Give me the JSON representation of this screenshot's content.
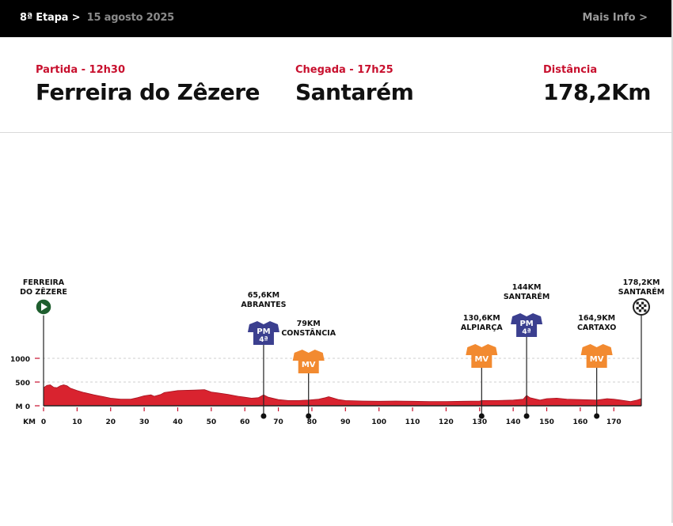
{
  "header": {
    "stage": "8ª Etapa",
    "separator": ">",
    "date": "15 agosto 2025",
    "more_info": "Mais Info >"
  },
  "stage_info": {
    "start_label": "Partida - 12h30",
    "start_city": "Ferreira do Zêzere",
    "finish_label": "Chegada - 17h25",
    "finish_city": "Santarém",
    "distance_label": "Distância",
    "distance_value": "178,2Km"
  },
  "colors": {
    "accent": "#c8102e",
    "profile_fill": "#d9232f",
    "pm_jersey": "#3b3f8f",
    "mv_jersey": "#f28a30"
  },
  "chart_data": {
    "type": "area",
    "x_axis_label": "KM",
    "y_axis_label": "M",
    "xlim": [
      0,
      178.2
    ],
    "ylim": [
      0,
      1000
    ],
    "x_ticks": [
      "0",
      "10",
      "20",
      "30",
      "40",
      "50",
      "60",
      "70",
      "80",
      "90",
      "100",
      "110",
      "120",
      "130",
      "140",
      "150",
      "160",
      "170"
    ],
    "x_tick_values": [
      0,
      10,
      20,
      30,
      40,
      50,
      60,
      70,
      80,
      90,
      100,
      110,
      120,
      130,
      140,
      150,
      160,
      170
    ],
    "y_ticks": [
      {
        "value": 0,
        "label": "M 0"
      },
      {
        "value": 500,
        "label": "500"
      },
      {
        "value": 1000,
        "label": "1000"
      }
    ],
    "profile": [
      [
        0,
        380
      ],
      [
        1,
        430
      ],
      [
        2,
        440
      ],
      [
        3,
        390
      ],
      [
        4,
        380
      ],
      [
        5,
        420
      ],
      [
        6,
        440
      ],
      [
        7,
        420
      ],
      [
        8,
        370
      ],
      [
        10,
        320
      ],
      [
        12,
        280
      ],
      [
        15,
        230
      ],
      [
        18,
        190
      ],
      [
        20,
        160
      ],
      [
        23,
        140
      ],
      [
        26,
        140
      ],
      [
        28,
        170
      ],
      [
        30,
        210
      ],
      [
        32,
        230
      ],
      [
        33,
        200
      ],
      [
        35,
        240
      ],
      [
        36,
        280
      ],
      [
        38,
        300
      ],
      [
        40,
        320
      ],
      [
        45,
        330
      ],
      [
        48,
        340
      ],
      [
        50,
        290
      ],
      [
        52,
        270
      ],
      [
        55,
        240
      ],
      [
        58,
        200
      ],
      [
        60,
        180
      ],
      [
        62,
        160
      ],
      [
        64,
        170
      ],
      [
        65.6,
        230
      ],
      [
        67,
        180
      ],
      [
        70,
        130
      ],
      [
        73,
        110
      ],
      [
        76,
        110
      ],
      [
        79,
        120
      ],
      [
        82,
        140
      ],
      [
        84,
        170
      ],
      [
        85,
        190
      ],
      [
        86,
        170
      ],
      [
        88,
        130
      ],
      [
        90,
        110
      ],
      [
        95,
        100
      ],
      [
        100,
        95
      ],
      [
        105,
        100
      ],
      [
        110,
        95
      ],
      [
        115,
        90
      ],
      [
        120,
        90
      ],
      [
        125,
        95
      ],
      [
        130,
        100
      ],
      [
        130.6,
        110
      ],
      [
        135,
        110
      ],
      [
        140,
        120
      ],
      [
        143,
        140
      ],
      [
        144,
        220
      ],
      [
        145,
        170
      ],
      [
        148,
        120
      ],
      [
        150,
        150
      ],
      [
        153,
        160
      ],
      [
        156,
        140
      ],
      [
        160,
        130
      ],
      [
        164.9,
        120
      ],
      [
        168,
        150
      ],
      [
        170,
        140
      ],
      [
        172,
        120
      ],
      [
        175,
        90
      ],
      [
        177,
        120
      ],
      [
        178.2,
        150
      ]
    ],
    "markers": [
      {
        "km": 0,
        "kind": "start",
        "label_lines": [
          "FERREIRA",
          "DO ZÊZERE"
        ]
      },
      {
        "km": 65.6,
        "kind": "pm",
        "label_lines": [
          "65,6KM",
          "ABRANTES"
        ],
        "jersey_top": "PM",
        "jersey_bottom": "4ª"
      },
      {
        "km": 79,
        "kind": "mv",
        "label_lines": [
          "79KM",
          "CONSTÂNCIA"
        ],
        "jersey_top": "MV"
      },
      {
        "km": 130.6,
        "kind": "mv",
        "label_lines": [
          "130,6KM",
          "ALPIARÇA"
        ],
        "jersey_top": "MV"
      },
      {
        "km": 144,
        "kind": "pm",
        "label_lines": [
          "144KM",
          "SANTARÉM"
        ],
        "jersey_top": "PM",
        "jersey_bottom": "4ª"
      },
      {
        "km": 164.9,
        "kind": "mv",
        "label_lines": [
          "164,9KM",
          "CARTAXO"
        ],
        "jersey_top": "MV"
      },
      {
        "km": 178.2,
        "kind": "finish",
        "label_lines": [
          "178,2KM",
          "SANTARÉM"
        ]
      }
    ]
  }
}
